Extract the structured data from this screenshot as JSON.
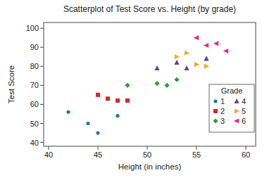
{
  "chart_data": {
    "type": "scatter",
    "title": "Scatterplot of Test Score vs. Height (by grade)",
    "x_label": "Height (in inches)",
    "y_label": "Test Score",
    "legend_title": "Grade",
    "legend": "lower right",
    "grid": false,
    "xlim": [
      39.5,
      61
    ],
    "ylim": [
      38,
      103
    ],
    "xticks": [
      40,
      45,
      50,
      55,
      60
    ],
    "yticks": [
      40,
      50,
      60,
      70,
      80,
      90,
      100
    ],
    "series": [
      {
        "name": "1",
        "color": "#1f77b4",
        "marker": "circle",
        "x": [
          42,
          44,
          45,
          47
        ],
        "values": [
          56,
          50,
          45,
          54
        ]
      },
      {
        "name": "2",
        "color": "#d62728",
        "marker": "square",
        "x": [
          45,
          46,
          47,
          48
        ],
        "values": [
          65,
          63,
          62,
          62
        ]
      },
      {
        "name": "3",
        "color": "#2ca02c",
        "marker": "diamond",
        "x": [
          48,
          51,
          52,
          53
        ],
        "values": [
          70,
          71,
          70,
          73
        ]
      },
      {
        "name": "4",
        "color": "#6a3d9a",
        "marker": "triangle-up",
        "x": [
          51,
          53,
          54,
          56
        ],
        "values": [
          79,
          82,
          79,
          84
        ]
      },
      {
        "name": "5",
        "color": "#f5a623",
        "marker": "triangle-right",
        "x": [
          53,
          54,
          55,
          56
        ],
        "values": [
          85,
          87,
          81,
          80
        ]
      },
      {
        "name": "6",
        "color": "#e7298a",
        "marker": "triangle-left",
        "x": [
          55,
          56,
          57,
          58
        ],
        "values": [
          95,
          91,
          92,
          88
        ]
      }
    ]
  }
}
